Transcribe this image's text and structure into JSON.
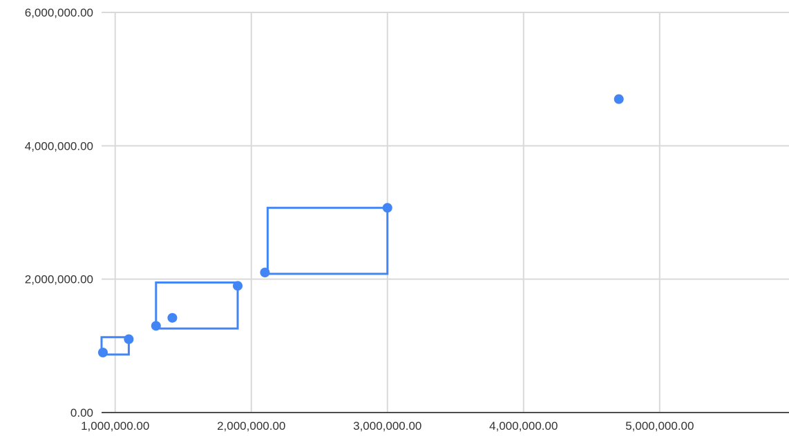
{
  "chart_data": {
    "type": "scatter",
    "title": "",
    "xlabel": "",
    "ylabel": "",
    "xlim": [
      900000,
      5950000
    ],
    "ylim": [
      0,
      6000000
    ],
    "grid": true,
    "legend": "none",
    "x_ticks": [
      {
        "value": 1000000,
        "label": "1,000,000.00"
      },
      {
        "value": 2000000,
        "label": "2,000,000.00"
      },
      {
        "value": 3000000,
        "label": "3,000,000.00"
      },
      {
        "value": 4000000,
        "label": "4,000,000.00"
      },
      {
        "value": 5000000,
        "label": "5,000,000.00"
      }
    ],
    "y_ticks": [
      {
        "value": 0,
        "label": "0.00"
      },
      {
        "value": 2000000,
        "label": "2,000,000.00"
      },
      {
        "value": 4000000,
        "label": "4,000,000.00"
      },
      {
        "value": 6000000,
        "label": "6,000,000.00"
      }
    ],
    "series": [
      {
        "color": "#4285f4",
        "points": [
          {
            "x": 910000,
            "y": 900000
          },
          {
            "x": 1100000,
            "y": 1100000
          },
          {
            "x": 1300000,
            "y": 1300000
          },
          {
            "x": 1420000,
            "y": 1420000
          },
          {
            "x": 1900000,
            "y": 1900000
          },
          {
            "x": 2100000,
            "y": 2100000
          },
          {
            "x": 3000000,
            "y": 3070000
          },
          {
            "x": 4700000,
            "y": 4700000
          }
        ]
      }
    ],
    "annotations": [
      {
        "type": "rect",
        "x": [
          900000,
          1100000
        ],
        "y": [
          870000,
          1130000
        ]
      },
      {
        "type": "rect",
        "x": [
          1300000,
          1900000
        ],
        "y": [
          1260000,
          1950000
        ]
      },
      {
        "type": "rect",
        "x": [
          2120000,
          3000000
        ],
        "y": [
          2080000,
          3070000
        ]
      }
    ],
    "colors": {
      "point": "#4285f4",
      "annotation": "#4285f4",
      "grid": "#d9d9d9",
      "axis": "#4d4d4d",
      "text": "#333333"
    }
  }
}
